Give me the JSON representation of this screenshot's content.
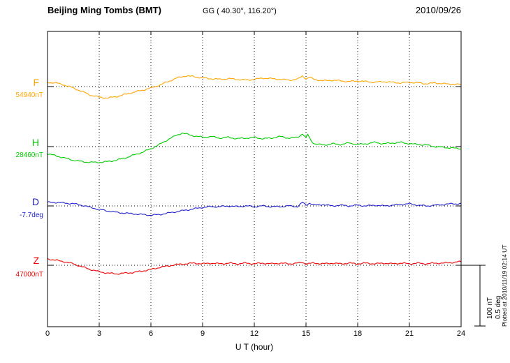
{
  "header": {
    "station": "Beijing Ming Tombs (BMT)",
    "coords": "GG ( 40.30°, 116.20°)",
    "date": "2010/09/26"
  },
  "axis": {
    "xlabel": "U T (hour)",
    "ticks": [
      0,
      3,
      6,
      9,
      12,
      15,
      18,
      21,
      24
    ]
  },
  "scale_bar": {
    "line1": "100 nT",
    "line2": "0.5 deg"
  },
  "footer": {
    "plotted": "Plotted at 2010/11/19 02:14 UT"
  },
  "chart_data": {
    "type": "line",
    "title": "Beijing Ming Tombs (BMT) magnetogram",
    "date": "2010/09/26",
    "xlabel": "U T (hour)",
    "x_range": [
      0,
      24
    ],
    "x_ticks": [
      0,
      3,
      6,
      9,
      12,
      15,
      18,
      21,
      24
    ],
    "grid": "dotted vertical every 3 h, dotted horizontal at each baseline",
    "scale": {
      "nT_per_div": 100,
      "deg_per_div": 0.5
    },
    "series": [
      {
        "key": "F",
        "name": "F",
        "unit": "nT",
        "baseline": 54940,
        "baseline_label": "54940nT",
        "color": "#FFA500",
        "points": [
          [
            0,
            7
          ],
          [
            0.5,
            6
          ],
          [
            1,
            2.4
          ],
          [
            1.5,
            -2.4
          ],
          [
            2,
            -8
          ],
          [
            2.5,
            -14
          ],
          [
            3,
            -17.6
          ],
          [
            3.5,
            -18.8
          ],
          [
            4,
            -16.5
          ],
          [
            4.5,
            -13
          ],
          [
            5,
            -9.4
          ],
          [
            5.5,
            -6
          ],
          [
            6,
            -2.4
          ],
          [
            6.5,
            2.4
          ],
          [
            7,
            8.2
          ],
          [
            7.5,
            14
          ],
          [
            8,
            17.6
          ],
          [
            8.5,
            16.5
          ],
          [
            9,
            14
          ],
          [
            9.5,
            13
          ],
          [
            10,
            11.8
          ],
          [
            10.5,
            13
          ],
          [
            11,
            11.8
          ],
          [
            11.5,
            10.6
          ],
          [
            12,
            11.8
          ],
          [
            12.5,
            14
          ],
          [
            13,
            13
          ],
          [
            13.5,
            11.8
          ],
          [
            14,
            10.6
          ],
          [
            14.5,
            11.8
          ],
          [
            14.8,
            17.6
          ],
          [
            15,
            13
          ],
          [
            15.2,
            15
          ],
          [
            15.5,
            11.8
          ],
          [
            16,
            9.4
          ],
          [
            16.5,
            10.6
          ],
          [
            17,
            9.4
          ],
          [
            17.5,
            8.2
          ],
          [
            18,
            9.4
          ],
          [
            18.5,
            8.2
          ],
          [
            19,
            7
          ],
          [
            19.5,
            8.2
          ],
          [
            20,
            7
          ],
          [
            20.5,
            6
          ],
          [
            21,
            7
          ],
          [
            21.5,
            6
          ],
          [
            22,
            4.7
          ],
          [
            22.5,
            6
          ],
          [
            23,
            4.7
          ],
          [
            23.5,
            3.5
          ],
          [
            24,
            3.5
          ]
        ]
      },
      {
        "key": "H",
        "name": "H",
        "unit": "nT",
        "baseline": 28460,
        "baseline_label": "28460nT",
        "color": "#00CC00",
        "points": [
          [
            0,
            -11.8
          ],
          [
            0.5,
            -15.3
          ],
          [
            1,
            -18.8
          ],
          [
            1.5,
            -22.4
          ],
          [
            2,
            -24.7
          ],
          [
            2.5,
            -25.9
          ],
          [
            3,
            -25.9
          ],
          [
            3.5,
            -24.7
          ],
          [
            4,
            -22.4
          ],
          [
            4.5,
            -18.8
          ],
          [
            5,
            -14
          ],
          [
            5.5,
            -9.4
          ],
          [
            6,
            -3.5
          ],
          [
            6.5,
            3.5
          ],
          [
            7,
            11.8
          ],
          [
            7.5,
            18.8
          ],
          [
            7.8,
            22.4
          ],
          [
            8,
            21
          ],
          [
            8.5,
            17.6
          ],
          [
            9,
            15.3
          ],
          [
            9.5,
            16.5
          ],
          [
            10,
            14
          ],
          [
            10.5,
            15.3
          ],
          [
            11,
            13
          ],
          [
            11.5,
            14
          ],
          [
            12,
            15.3
          ],
          [
            12.5,
            13
          ],
          [
            13,
            14
          ],
          [
            13.5,
            16.5
          ],
          [
            14,
            14
          ],
          [
            14.5,
            15.3
          ],
          [
            14.8,
            21
          ],
          [
            15,
            14
          ],
          [
            15.1,
            20
          ],
          [
            15.3,
            9.4
          ],
          [
            15.5,
            4.7
          ],
          [
            16,
            2.4
          ],
          [
            16.5,
            4.7
          ],
          [
            17,
            3.5
          ],
          [
            17.5,
            5.9
          ],
          [
            18,
            3.5
          ],
          [
            18.5,
            4.7
          ],
          [
            19,
            7
          ],
          [
            19.5,
            4.7
          ],
          [
            20,
            5.9
          ],
          [
            20.5,
            7
          ],
          [
            21,
            4.7
          ],
          [
            21.5,
            3.5
          ],
          [
            22,
            2.4
          ],
          [
            22.5,
            0
          ],
          [
            23,
            -1.2
          ],
          [
            23.5,
            -2.4
          ],
          [
            24,
            -3.5
          ]
        ]
      },
      {
        "key": "D",
        "name": "D",
        "unit": "deg",
        "baseline": -7.7,
        "baseline_label": "-7.7deg",
        "color": "#2222CC",
        "points": [
          [
            0,
            0.029
          ],
          [
            0.5,
            0.029
          ],
          [
            1,
            0.024
          ],
          [
            1.5,
            0.018
          ],
          [
            2,
            0.006
          ],
          [
            2.5,
            -0.012
          ],
          [
            3,
            -0.029
          ],
          [
            3.5,
            -0.041
          ],
          [
            4,
            -0.053
          ],
          [
            4.5,
            -0.059
          ],
          [
            5,
            -0.065
          ],
          [
            5.5,
            -0.071
          ],
          [
            6,
            -0.076
          ],
          [
            6.5,
            -0.071
          ],
          [
            7,
            -0.059
          ],
          [
            7.5,
            -0.047
          ],
          [
            8,
            -0.035
          ],
          [
            8.5,
            -0.024
          ],
          [
            9,
            -0.012
          ],
          [
            9.5,
            -0.006
          ],
          [
            10,
            -0.006
          ],
          [
            10.5,
            0
          ],
          [
            11,
            -0.006
          ],
          [
            11.5,
            0
          ],
          [
            12,
            -0.006
          ],
          [
            12.5,
            0
          ],
          [
            13,
            -0.006
          ],
          [
            13.5,
            -0.006
          ],
          [
            14,
            0
          ],
          [
            14.5,
            -0.006
          ],
          [
            14.8,
            0.029
          ],
          [
            15,
            0.006
          ],
          [
            15.2,
            0.024
          ],
          [
            15.5,
            0.006
          ],
          [
            16,
            0.012
          ],
          [
            16.5,
            0
          ],
          [
            17,
            0.006
          ],
          [
            17.5,
            0
          ],
          [
            18,
            0.006
          ],
          [
            18.5,
            0
          ],
          [
            19,
            0.006
          ],
          [
            19.5,
            0
          ],
          [
            20,
            0.006
          ],
          [
            20.5,
            0.012
          ],
          [
            21,
            0.018
          ],
          [
            21.5,
            0.006
          ],
          [
            22,
            0
          ],
          [
            22.5,
            0.006
          ],
          [
            23,
            0.012
          ],
          [
            23.5,
            0.018
          ],
          [
            24,
            0.018
          ]
        ]
      },
      {
        "key": "Z",
        "name": "Z",
        "unit": "nT",
        "baseline": 47000,
        "baseline_label": "47000nT",
        "color": "#EE0000",
        "points": [
          [
            0,
            10.6
          ],
          [
            0.5,
            8.2
          ],
          [
            1,
            5.9
          ],
          [
            1.5,
            2.4
          ],
          [
            2,
            -2.4
          ],
          [
            2.5,
            -7
          ],
          [
            3,
            -10.6
          ],
          [
            3.5,
            -13
          ],
          [
            4,
            -14
          ],
          [
            4.5,
            -13
          ],
          [
            5,
            -11.8
          ],
          [
            5.5,
            -9.4
          ],
          [
            6,
            -7
          ],
          [
            6.5,
            -3.5
          ],
          [
            7,
            -1.2
          ],
          [
            7.5,
            1.2
          ],
          [
            8,
            2.4
          ],
          [
            8.5,
            3.5
          ],
          [
            9,
            2.4
          ],
          [
            9.5,
            3.5
          ],
          [
            10,
            2.4
          ],
          [
            10.5,
            3.5
          ],
          [
            11,
            2.4
          ],
          [
            11.5,
            3.5
          ],
          [
            12,
            2.4
          ],
          [
            12.5,
            3.5
          ],
          [
            13,
            2.4
          ],
          [
            13.5,
            3.5
          ],
          [
            14,
            2.4
          ],
          [
            14.5,
            3.5
          ],
          [
            14.8,
            4.7
          ],
          [
            15,
            2.4
          ],
          [
            15.5,
            3.5
          ],
          [
            16,
            2.4
          ],
          [
            16.5,
            3.5
          ],
          [
            17,
            2.4
          ],
          [
            17.5,
            3.5
          ],
          [
            18,
            2.4
          ],
          [
            18.5,
            3.5
          ],
          [
            19,
            2.4
          ],
          [
            19.5,
            3.5
          ],
          [
            20,
            2.4
          ],
          [
            20.5,
            3.5
          ],
          [
            21,
            2.4
          ],
          [
            21.5,
            3.5
          ],
          [
            22,
            2.4
          ],
          [
            22.5,
            3.5
          ],
          [
            23,
            3.5
          ],
          [
            23.5,
            4.7
          ],
          [
            24,
            5.9
          ]
        ]
      }
    ]
  }
}
